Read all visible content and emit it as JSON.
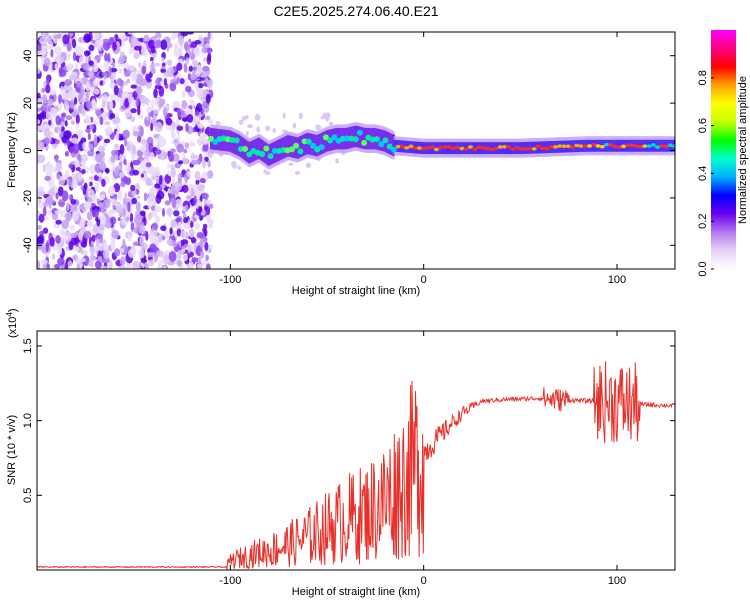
{
  "title": "C2E5.2025.274.06.40.E21",
  "chart_data": [
    {
      "type": "heatmap",
      "xlabel": "Height of straight line (km)",
      "ylabel": "Frequency (Hz)",
      "xlim": [
        -200,
        130
      ],
      "ylim": [
        -50,
        50
      ],
      "xticks": [
        -100,
        0,
        100
      ],
      "yticks": [
        -40,
        -20,
        0,
        20,
        40
      ],
      "noise_region_x": [
        -200,
        -110
      ],
      "track": [
        {
          "x": -110,
          "y": 5
        },
        {
          "x": -100,
          "y": 4
        },
        {
          "x": -95,
          "y": 2
        },
        {
          "x": -90,
          "y": -1
        },
        {
          "x": -85,
          "y": 1
        },
        {
          "x": -80,
          "y": -2
        },
        {
          "x": -75,
          "y": 0
        },
        {
          "x": -70,
          "y": 2
        },
        {
          "x": -65,
          "y": 1
        },
        {
          "x": -60,
          "y": 3
        },
        {
          "x": -55,
          "y": 2
        },
        {
          "x": -50,
          "y": 4
        },
        {
          "x": -45,
          "y": 5
        },
        {
          "x": -40,
          "y": 5
        },
        {
          "x": -35,
          "y": 6
        },
        {
          "x": -30,
          "y": 5
        },
        {
          "x": -25,
          "y": 5
        },
        {
          "x": -20,
          "y": 4
        },
        {
          "x": -15,
          "y": 2
        },
        {
          "x": 0,
          "y": 1
        },
        {
          "x": 50,
          "y": 1
        },
        {
          "x": 85,
          "y": 2
        },
        {
          "x": 100,
          "y": 2
        },
        {
          "x": 130,
          "y": 2
        }
      ],
      "colorbar": {
        "label": "Normalized spectral amplitude",
        "range": [
          0,
          1
        ],
        "ticks": [
          "0.0",
          "0.2",
          "0.4",
          "0.6",
          "0.8"
        ],
        "colors": [
          "#ffffff",
          "#e6d2f8",
          "#b37af0",
          "#6a00f0",
          "#0000ff",
          "#00b0ff",
          "#00ffcc",
          "#00ff00",
          "#c8ff00",
          "#ffff00",
          "#ffa000",
          "#ff0000",
          "#ff0080",
          "#ff00ff"
        ]
      }
    },
    {
      "type": "line",
      "xlabel": "Height of straight line (km)",
      "ylabel": "SNR (10 * v/v)",
      "multiplier": "(x10",
      "multiplier_exp": "4",
      "multiplier_close": ")",
      "xlim": [
        -200,
        130
      ],
      "ylim": [
        0,
        1.6
      ],
      "xticks": [
        -100,
        0,
        100
      ],
      "yticks": [
        "0.5",
        "1.0",
        "1.5"
      ],
      "color": "#e8302a",
      "profile": [
        {
          "x": -200,
          "v": 0.02
        },
        {
          "x": -102,
          "v": 0.02
        },
        {
          "x": -100,
          "v": 0.06
        },
        {
          "x": -90,
          "v": 0.1
        },
        {
          "x": -80,
          "v": 0.13
        },
        {
          "x": -70,
          "v": 0.17
        },
        {
          "x": -60,
          "v": 0.22
        },
        {
          "x": -50,
          "v": 0.28
        },
        {
          "x": -40,
          "v": 0.34
        },
        {
          "x": -30,
          "v": 0.38
        },
        {
          "x": -20,
          "v": 0.46
        },
        {
          "x": -10,
          "v": 0.6
        },
        {
          "x": 0,
          "v": 0.78
        },
        {
          "x": 10,
          "v": 0.92
        },
        {
          "x": 20,
          "v": 1.05
        },
        {
          "x": 30,
          "v": 1.13
        },
        {
          "x": 40,
          "v": 1.14
        },
        {
          "x": 60,
          "v": 1.15
        },
        {
          "x": 70,
          "v": 1.14
        },
        {
          "x": 90,
          "v": 1.13
        },
        {
          "x": 100,
          "v": 1.12
        },
        {
          "x": 110,
          "v": 1.11
        },
        {
          "x": 130,
          "v": 1.1
        }
      ]
    }
  ]
}
